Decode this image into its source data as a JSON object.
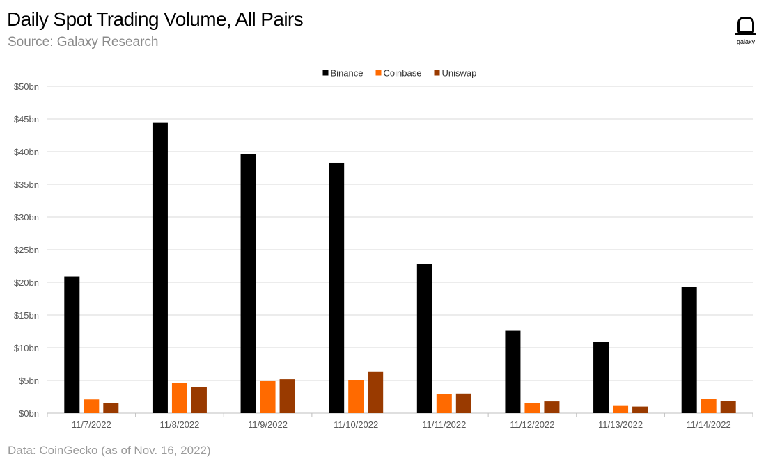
{
  "header": {
    "title": "Daily Spot Trading Volume, All Pairs",
    "subtitle": "Source: Galaxy Research"
  },
  "footer": {
    "note": "Data: CoinGecko (as of Nov. 16, 2022)"
  },
  "logo": {
    "text": "galaxy",
    "icon": "galaxy-logo-icon"
  },
  "chart_data": {
    "type": "bar",
    "title": "Daily Spot Trading Volume, All Pairs",
    "xlabel": "",
    "ylabel": "",
    "categories": [
      "11/7/2022",
      "11/8/2022",
      "11/9/2022",
      "11/10/2022",
      "11/11/2022",
      "11/12/2022",
      "11/13/2022",
      "11/14/2022"
    ],
    "series": [
      {
        "name": "Binance",
        "color": "#000000",
        "values": [
          20.9,
          44.4,
          39.6,
          38.3,
          22.8,
          12.6,
          10.9,
          19.3
        ]
      },
      {
        "name": "Coinbase",
        "color": "#ff6a00",
        "values": [
          2.1,
          4.6,
          4.9,
          5.0,
          2.9,
          1.5,
          1.1,
          2.2
        ]
      },
      {
        "name": "Uniswap",
        "color": "#993a00",
        "values": [
          1.5,
          4.0,
          5.2,
          6.3,
          3.0,
          1.8,
          1.0,
          1.9
        ]
      }
    ],
    "yticks": [
      "$0bn",
      "$5bn",
      "$10bn",
      "$15bn",
      "$20bn",
      "$25bn",
      "$30bn",
      "$35bn",
      "$40bn",
      "$45bn",
      "$50bn"
    ],
    "ylim": [
      0,
      50
    ],
    "grid": true,
    "legend_position": "top-center"
  }
}
